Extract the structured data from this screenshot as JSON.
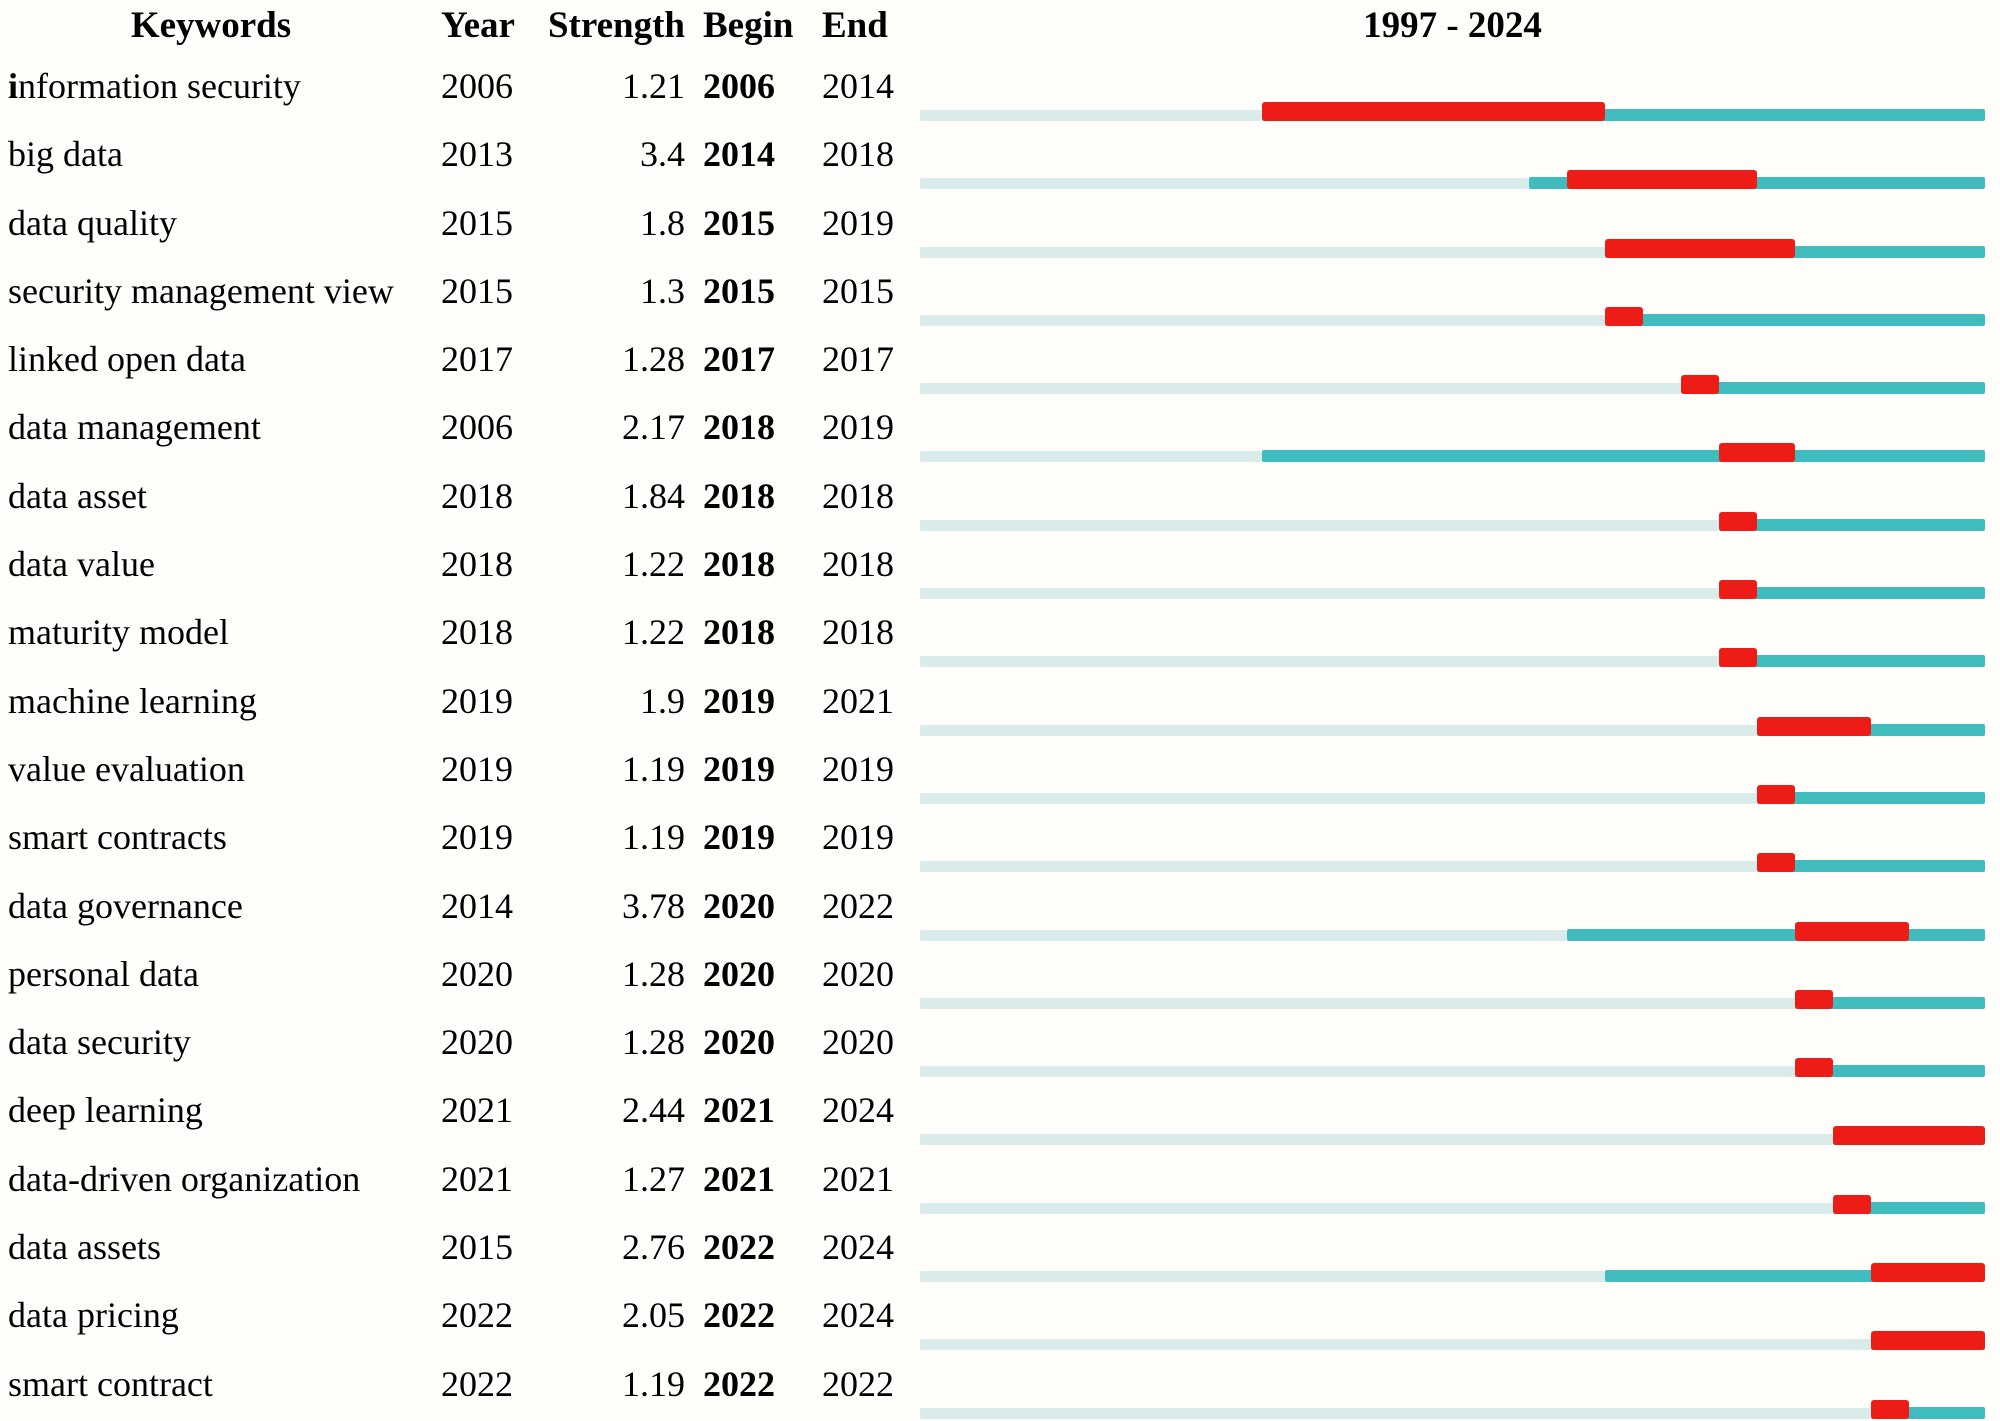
{
  "header": {
    "keywords": "Keywords",
    "year": "Year",
    "strength": "Strength",
    "begin": "Begin",
    "end": "End"
  },
  "colors": {
    "burst_red": "#ee1c16",
    "active_teal": "#41bcbe",
    "pre_light_teal": "#d9ecea",
    "text": "#000000",
    "background": "#fffefb"
  },
  "chart_data": {
    "type": "table",
    "title": "1997 - 2024",
    "columns": [
      "Keywords",
      "Year",
      "Strength",
      "Begin",
      "End"
    ],
    "timeline": {
      "start_year": 1997,
      "end_year": 2024
    },
    "rows": [
      {
        "keyword": "information security",
        "bold_first_letter": true,
        "year": 2006,
        "strength": "1.21",
        "begin": 2006,
        "end": 2014
      },
      {
        "keyword": "big data",
        "bold_first_letter": false,
        "year": 2013,
        "strength": "3.4",
        "begin": 2014,
        "end": 2018
      },
      {
        "keyword": "data quality",
        "bold_first_letter": false,
        "year": 2015,
        "strength": "1.8",
        "begin": 2015,
        "end": 2019
      },
      {
        "keyword": "security management view",
        "bold_first_letter": false,
        "year": 2015,
        "strength": "1.3",
        "begin": 2015,
        "end": 2015
      },
      {
        "keyword": "linked open data",
        "bold_first_letter": false,
        "year": 2017,
        "strength": "1.28",
        "begin": 2017,
        "end": 2017
      },
      {
        "keyword": "data management",
        "bold_first_letter": false,
        "year": 2006,
        "strength": "2.17",
        "begin": 2018,
        "end": 2019
      },
      {
        "keyword": "data asset",
        "bold_first_letter": false,
        "year": 2018,
        "strength": "1.84",
        "begin": 2018,
        "end": 2018
      },
      {
        "keyword": "data value",
        "bold_first_letter": false,
        "year": 2018,
        "strength": "1.22",
        "begin": 2018,
        "end": 2018
      },
      {
        "keyword": "maturity model",
        "bold_first_letter": false,
        "year": 2018,
        "strength": "1.22",
        "begin": 2018,
        "end": 2018
      },
      {
        "keyword": "machine learning",
        "bold_first_letter": false,
        "year": 2019,
        "strength": "1.9",
        "begin": 2019,
        "end": 2021
      },
      {
        "keyword": "value evaluation",
        "bold_first_letter": false,
        "year": 2019,
        "strength": "1.19",
        "begin": 2019,
        "end": 2019
      },
      {
        "keyword": "smart contracts",
        "bold_first_letter": false,
        "year": 2019,
        "strength": "1.19",
        "begin": 2019,
        "end": 2019
      },
      {
        "keyword": "data governance",
        "bold_first_letter": false,
        "year": 2014,
        "strength": "3.78",
        "begin": 2020,
        "end": 2022
      },
      {
        "keyword": "personal data",
        "bold_first_letter": false,
        "year": 2020,
        "strength": "1.28",
        "begin": 2020,
        "end": 2020
      },
      {
        "keyword": "data security",
        "bold_first_letter": false,
        "year": 2020,
        "strength": "1.28",
        "begin": 2020,
        "end": 2020
      },
      {
        "keyword": "deep learning",
        "bold_first_letter": false,
        "year": 2021,
        "strength": "2.44",
        "begin": 2021,
        "end": 2024
      },
      {
        "keyword": "data-driven organization",
        "bold_first_letter": false,
        "year": 2021,
        "strength": "1.27",
        "begin": 2021,
        "end": 2021
      },
      {
        "keyword": "data assets",
        "bold_first_letter": false,
        "year": 2015,
        "strength": "2.76",
        "begin": 2022,
        "end": 2024
      },
      {
        "keyword": "data pricing",
        "bold_first_letter": false,
        "year": 2022,
        "strength": "2.05",
        "begin": 2022,
        "end": 2024
      },
      {
        "keyword": "smart contract",
        "bold_first_letter": false,
        "year": 2022,
        "strength": "1.19",
        "begin": 2022,
        "end": 2022
      }
    ]
  }
}
